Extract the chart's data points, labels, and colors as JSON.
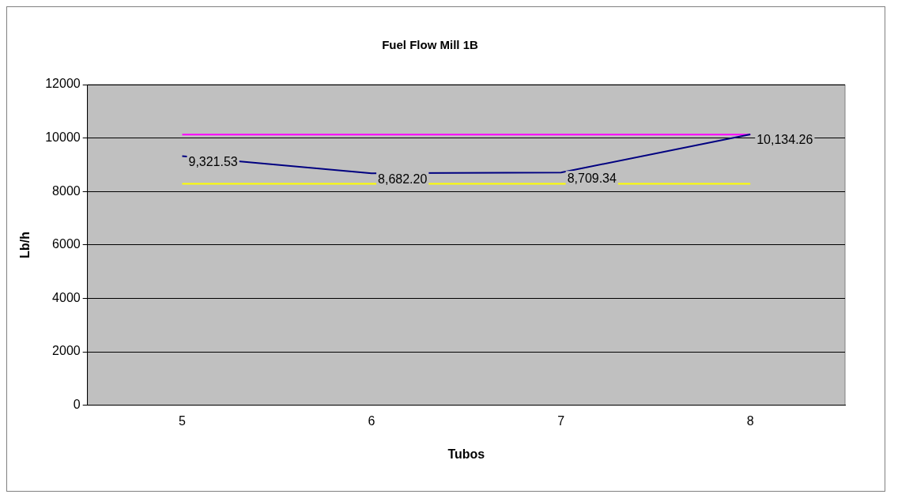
{
  "chart_data": {
    "type": "line",
    "title": "Fuel Flow Mill 1B",
    "xlabel": "Tubos",
    "ylabel": "Lb/h",
    "categories": [
      "5",
      "6",
      "7",
      "8"
    ],
    "series": [
      {
        "color": "#000080",
        "values": [
          9321.53,
          8682.2,
          8709.34,
          10134.26
        ],
        "value_labels": [
          "9,321.53",
          "8,682.20",
          "8,709.34",
          "10,134.26"
        ]
      },
      {
        "color": "#ff00ff",
        "values": [
          10130,
          10130,
          10130,
          10130
        ]
      },
      {
        "color": "#ffff00",
        "values": [
          8290,
          8290,
          8290,
          8290
        ]
      }
    ],
    "ylim": [
      0,
      12000
    ],
    "yticks": [
      0,
      2000,
      4000,
      6000,
      8000,
      10000,
      12000
    ],
    "grid": "y",
    "legend": false,
    "marker": "none",
    "line_style": "solid"
  }
}
